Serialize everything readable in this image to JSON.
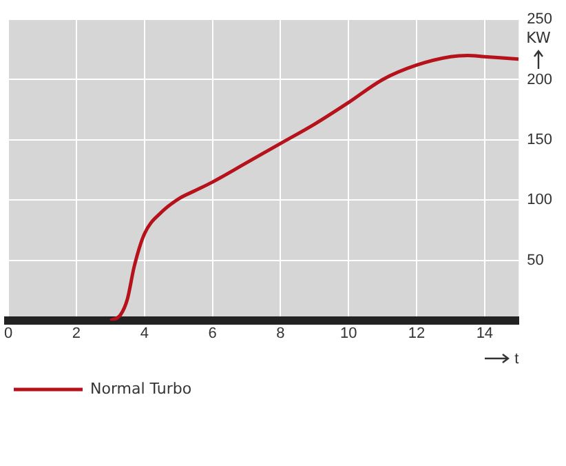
{
  "chart_data": {
    "type": "line",
    "xlabel": "t",
    "ylabel": "KW",
    "x": [
      3,
      3.3,
      3.5,
      3.7,
      4,
      4.5,
      5,
      5.5,
      6,
      7,
      8,
      9,
      10,
      11,
      12,
      13,
      13.5,
      14,
      15
    ],
    "series": [
      {
        "name": "Normal Turbo",
        "color": "#b5121b",
        "values": [
          0,
          5,
          18,
          45,
          72,
          90,
          101,
          108,
          115,
          131,
          147,
          163,
          181,
          200,
          212,
          219,
          220,
          219,
          217
        ]
      }
    ],
    "xlim": [
      0,
      15
    ],
    "xticks": [
      0,
      2,
      4,
      6,
      8,
      10,
      12,
      14
    ],
    "ylim": [
      0,
      250
    ],
    "yticks": [
      50,
      100,
      150,
      200,
      250
    ],
    "grid": true,
    "legend": "bottom left",
    "marker": "none",
    "line_style": "solid"
  }
}
